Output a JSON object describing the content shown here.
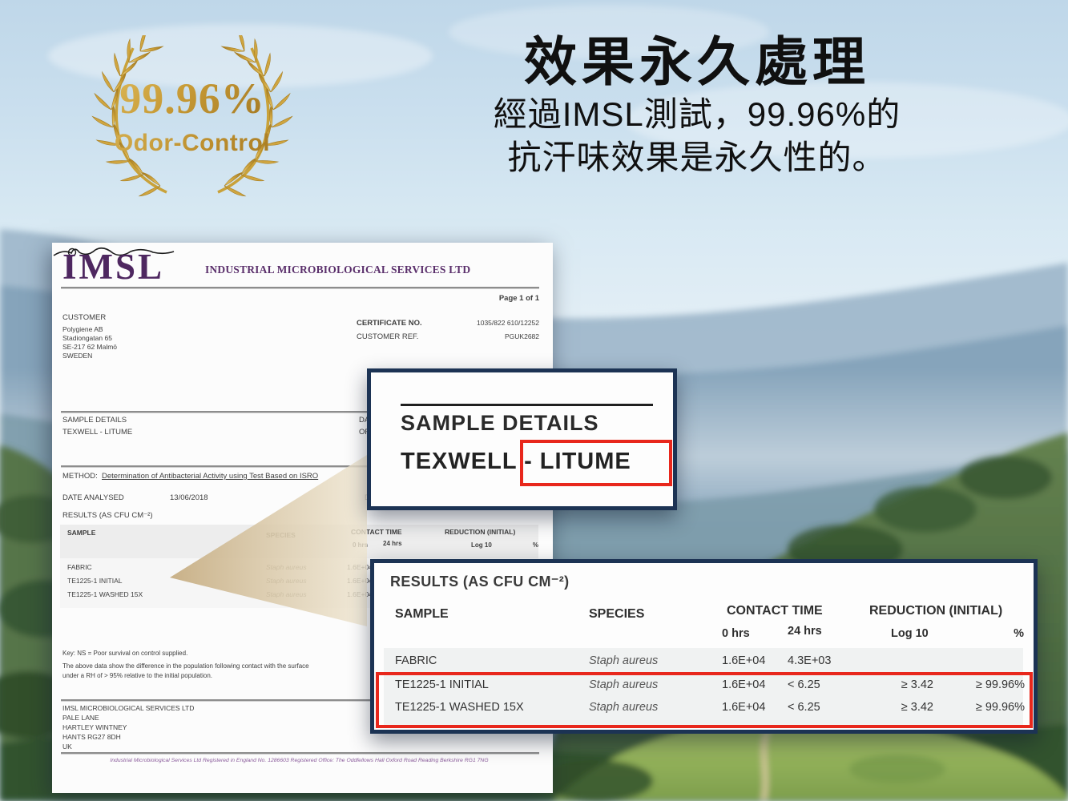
{
  "badge": {
    "value": "99.96%",
    "label": "Odor-Control"
  },
  "headline": {
    "title": "效果永久處理",
    "line1": "經過IMSL測試，99.96%的",
    "line2": "抗汗味效果是永久性的。"
  },
  "doc": {
    "logo": "IMSL",
    "company": "INDUSTRIAL MICROBIOLOGICAL SERVICES LTD",
    "page": "Page 1 of 1",
    "customer_label": "CUSTOMER",
    "customer_lines": [
      "Polygiene AB",
      "Stadiongatan 65",
      "SE-217 62 Malmö",
      "SWEDEN"
    ],
    "cert_no_label": "CERTIFICATE NO.",
    "cert_no": "1035/822 610/12252",
    "cust_ref_label": "CUSTOMER REF.",
    "cust_ref": "PGUK2682",
    "sample_details_label": "SAMPLE DETAILS",
    "sample_name": "TEXWELL - LITUME",
    "frag_da": "DA",
    "frag_of": "OF",
    "method_label": "METHOD:",
    "method_text": "Determination of Antibacterial Activity using Test Based on ISRO",
    "date_label": "DATE ANALYSED",
    "date_value": "13/06/2018",
    "frag_da2": "DA",
    "results_label": "RESULTS (AS CFU CM⁻²)",
    "key_note": "Key: NS = Poor survival on control supplied.",
    "note1": "The above data show the difference in the population following contact with the surface",
    "note2": "under a RH of > 95% relative to the initial population.",
    "address_lines": [
      "IMSL MICROBIOLOGICAL SERVICES LTD",
      "PALE LANE",
      "HARTLEY WINTNEY",
      "HANTS RG27 8DH",
      "UK"
    ],
    "footer": "Industrial Microbiological Services Ltd Registered in England No. 1286603  Registered Office: The Oddfellows Hall Oxford Road Reading Berkshire RG1 7NG"
  },
  "results_table_headers": {
    "sample": "SAMPLE",
    "species": "SPECIES",
    "contact_time": "CONTACT TIME",
    "hrs0": "0 hrs",
    "hrs24": "24 hrs",
    "reduction": "REDUCTION (INITIAL)",
    "log10": "Log 10",
    "percent": "%"
  },
  "doc_table_rows": [
    {
      "sample": "FABRIC",
      "species": "Staph aureus",
      "v0": "1.6E+04"
    },
    {
      "sample": "TE1225-1 INITIAL",
      "species": "Staph aureus",
      "v0": "1.6E+04"
    },
    {
      "sample": "TE1225-1 WASHED 15X",
      "species": "Staph aureus",
      "v0": "1.6E+04"
    }
  ],
  "callout_sample": {
    "heading": "SAMPLE DETAILS",
    "name_prefix": "TEXWELL",
    "name_highlight": "- LITUME"
  },
  "callout_results": {
    "title": "RESULTS (AS CFU CM⁻²)",
    "rows": [
      {
        "sample": "FABRIC",
        "species": "Staph aureus",
        "h0": "1.6E+04",
        "h24": "4.3E+03",
        "log10": "",
        "percent": ""
      },
      {
        "sample": "TE1225-1 INITIAL",
        "species": "Staph aureus",
        "h0": "1.6E+04",
        "h24": "< 6.25",
        "log10": "≥ 3.42",
        "percent": "≥ 99.96%"
      },
      {
        "sample": "TE1225-1 WASHED 15X",
        "species": "Staph aureus",
        "h0": "1.6E+04",
        "h24": "< 6.25",
        "log10": "≥ 3.42",
        "percent": "≥ 99.96%"
      }
    ]
  },
  "colors": {
    "navy_border": "#1c3354",
    "highlight_red": "#e8271c",
    "gold": "#c49b3c",
    "imsl_purple": "#532a63",
    "beam_tan": "#cdb78e"
  }
}
